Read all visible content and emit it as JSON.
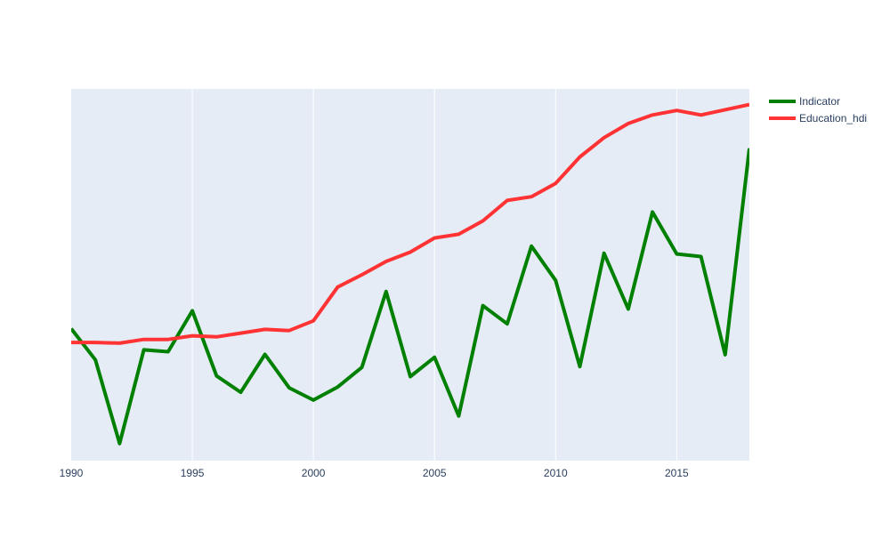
{
  "chart_data": {
    "type": "line",
    "title": "",
    "xlabel": "",
    "ylabel": "",
    "x": [
      1990,
      1991,
      1992,
      1993,
      1994,
      1995,
      1996,
      1997,
      1998,
      1999,
      2000,
      2001,
      2002,
      2003,
      2004,
      2005,
      2006,
      2007,
      2008,
      2009,
      2010,
      2011,
      2012,
      2013,
      2014,
      2015,
      2016,
      2017,
      2018
    ],
    "xlim": [
      1990,
      2018
    ],
    "x_tick_labels": [
      "1990",
      "1995",
      "2000",
      "2005",
      "2010",
      "2015"
    ],
    "x_tick_values": [
      1990,
      1995,
      2000,
      2005,
      2010,
      2015
    ],
    "y_ticks_shown": false,
    "ylim": [
      0,
      100
    ],
    "grid": {
      "x": true,
      "y": false
    },
    "background": "#e5ecf6",
    "legend_position": "top-right",
    "series": [
      {
        "name": "Indicator",
        "color": "#008000",
        "values": [
          35.5,
          27.1,
          4.6,
          29.8,
          29.3,
          40.3,
          22.8,
          18.4,
          28.6,
          19.6,
          16.3,
          19.8,
          25.1,
          45.5,
          22.6,
          27.8,
          12.0,
          41.7,
          36.8,
          57.7,
          48.5,
          25.3,
          55.8,
          40.8,
          66.9,
          55.6,
          54.9,
          28.5,
          84.0
        ]
      },
      {
        "name": "Education_hdi",
        "color": "#ff3333",
        "values": [
          31.8,
          31.8,
          31.6,
          32.6,
          32.6,
          33.6,
          33.3,
          34.3,
          35.3,
          35.0,
          37.6,
          46.7,
          50.0,
          53.6,
          56.1,
          59.9,
          60.9,
          64.5,
          70.0,
          71.0,
          74.6,
          81.7,
          86.9,
          90.7,
          93.0,
          94.2,
          93.0,
          94.4,
          95.8
        ]
      }
    ]
  }
}
